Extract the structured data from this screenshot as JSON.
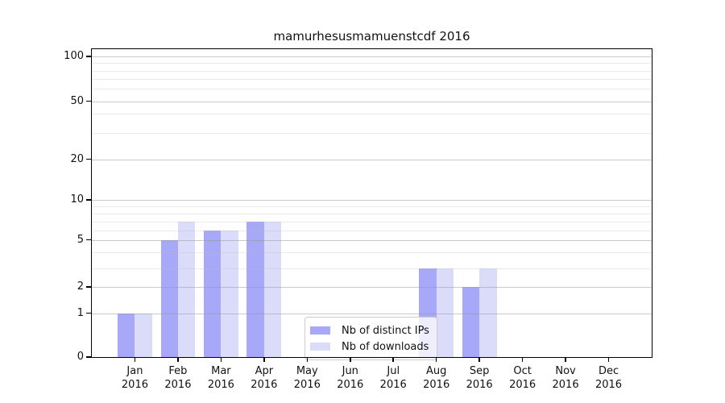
{
  "chart_data": {
    "type": "bar",
    "title": "mamurhesusmamuenstcdf 2016",
    "categories": [
      "Jan 2016",
      "Feb 2016",
      "Mar 2016",
      "Apr 2016",
      "May 2016",
      "Jun 2016",
      "Jul 2016",
      "Aug 2016",
      "Sep 2016",
      "Oct 2016",
      "Nov 2016",
      "Dec 2016"
    ],
    "series": [
      {
        "name": "Nb of distinct IPs",
        "color": "#a8a8f8",
        "values": [
          1,
          5,
          6,
          7,
          0,
          0,
          0,
          3,
          2,
          0,
          0,
          0
        ]
      },
      {
        "name": "Nb of downloads",
        "color": "#dbdbfa",
        "values": [
          1,
          7,
          6,
          7,
          0,
          0,
          0,
          3,
          3,
          0,
          0,
          0
        ]
      }
    ],
    "xlabel": "",
    "ylabel": "",
    "yticks": [
      0,
      1,
      2,
      5,
      10,
      20,
      50,
      100
    ],
    "minor_grid_values": [
      3,
      4,
      6,
      7,
      8,
      9,
      30,
      40,
      60,
      70,
      80,
      90
    ],
    "ylim": [
      0,
      100
    ],
    "yscale": "log-like (0,1,2,5,10,20,50,100)",
    "grid": "horizontal, drawn above bars",
    "legend_position": "lower center"
  },
  "style": {
    "bar_distinct_ips": "#a8a8f8",
    "bar_downloads": "#dbdbfa",
    "grid_major": "#cccccc",
    "grid_minor": "#ebebeb",
    "axis_color": "#000000",
    "legend_border": "#cccccc",
    "legend_background": "rgba(255,255,255,0.8)"
  }
}
